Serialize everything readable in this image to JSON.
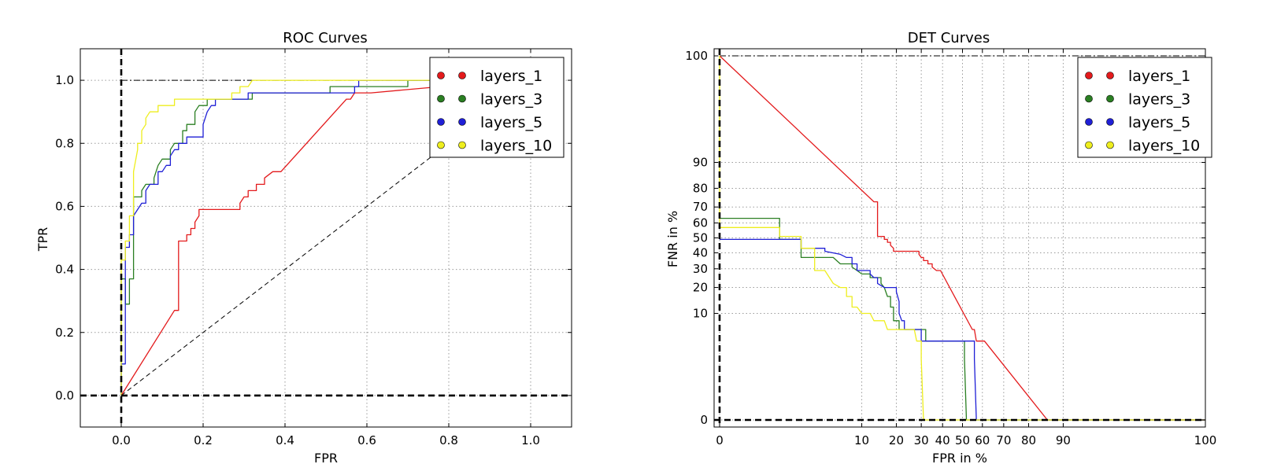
{
  "chart_data": [
    {
      "type": "line",
      "title": "ROC Curves",
      "xlabel": "FPR",
      "ylabel": "TPR",
      "xlim": [
        -0.1,
        1.1
      ],
      "ylim": [
        -0.1,
        1.1
      ],
      "xticks": [
        0.0,
        0.2,
        0.4,
        0.6,
        0.8,
        1.0
      ],
      "xtick_labels": [
        "0.0",
        "0.2",
        "0.4",
        "0.6",
        "0.8",
        "1.0"
      ],
      "yticks": [
        0.0,
        0.2,
        0.4,
        0.6,
        0.8,
        1.0
      ],
      "ytick_labels": [
        "0.0",
        "0.2",
        "0.4",
        "0.6",
        "0.8",
        "1.0"
      ],
      "grid": true,
      "legend": "top-right",
      "series": [
        {
          "name": "layers_1",
          "color": "#e31a1c",
          "points": [
            [
              0,
              0
            ],
            [
              0.13,
              0.27
            ],
            [
              0.14,
              0.27
            ],
            [
              0.14,
              0.49
            ],
            [
              0.16,
              0.49
            ],
            [
              0.16,
              0.51
            ],
            [
              0.17,
              0.51
            ],
            [
              0.17,
              0.53
            ],
            [
              0.18,
              0.53
            ],
            [
              0.18,
              0.55
            ],
            [
              0.19,
              0.57
            ],
            [
              0.19,
              0.59
            ],
            [
              0.29,
              0.59
            ],
            [
              0.29,
              0.61
            ],
            [
              0.3,
              0.63
            ],
            [
              0.31,
              0.63
            ],
            [
              0.31,
              0.65
            ],
            [
              0.33,
              0.65
            ],
            [
              0.33,
              0.67
            ],
            [
              0.35,
              0.67
            ],
            [
              0.35,
              0.69
            ],
            [
              0.37,
              0.71
            ],
            [
              0.39,
              0.71
            ],
            [
              0.55,
              0.94
            ],
            [
              0.56,
              0.94
            ],
            [
              0.57,
              0.96
            ],
            [
              0.61,
              0.96
            ],
            [
              0.78,
              0.98
            ],
            [
              0.79,
              0.98
            ],
            [
              0.8,
              1.0
            ],
            [
              1.0,
              1.0
            ]
          ]
        },
        {
          "name": "layers_3",
          "color": "#2a7f22",
          "points": [
            [
              0,
              0
            ],
            [
              0,
              0.37
            ],
            [
              0.01,
              0.37
            ],
            [
              0.01,
              0.29
            ],
            [
              0.02,
              0.29
            ],
            [
              0.02,
              0.37
            ],
            [
              0.03,
              0.37
            ],
            [
              0.03,
              0.63
            ],
            [
              0.05,
              0.63
            ],
            [
              0.05,
              0.65
            ],
            [
              0.06,
              0.67
            ],
            [
              0.08,
              0.67
            ],
            [
              0.08,
              0.69
            ],
            [
              0.09,
              0.73
            ],
            [
              0.1,
              0.75
            ],
            [
              0.12,
              0.75
            ],
            [
              0.12,
              0.78
            ],
            [
              0.13,
              0.8
            ],
            [
              0.15,
              0.8
            ],
            [
              0.15,
              0.84
            ],
            [
              0.16,
              0.84
            ],
            [
              0.16,
              0.86
            ],
            [
              0.18,
              0.86
            ],
            [
              0.18,
              0.9
            ],
            [
              0.19,
              0.92
            ],
            [
              0.21,
              0.92
            ],
            [
              0.21,
              0.94
            ],
            [
              0.32,
              0.94
            ],
            [
              0.32,
              0.96
            ],
            [
              0.51,
              0.96
            ],
            [
              0.51,
              0.98
            ],
            [
              0.7,
              0.98
            ],
            [
              0.7,
              1.0
            ],
            [
              1.0,
              1.0
            ]
          ]
        },
        {
          "name": "layers_5",
          "color": "#1f1fd6",
          "points": [
            [
              0,
              0
            ],
            [
              0,
              0.1
            ],
            [
              0.01,
              0.1
            ],
            [
              0.01,
              0.47
            ],
            [
              0.02,
              0.47
            ],
            [
              0.02,
              0.51
            ],
            [
              0.03,
              0.51
            ],
            [
              0.03,
              0.57
            ],
            [
              0.04,
              0.59
            ],
            [
              0.05,
              0.61
            ],
            [
              0.06,
              0.61
            ],
            [
              0.06,
              0.65
            ],
            [
              0.07,
              0.67
            ],
            [
              0.09,
              0.67
            ],
            [
              0.09,
              0.71
            ],
            [
              0.1,
              0.71
            ],
            [
              0.11,
              0.73
            ],
            [
              0.12,
              0.73
            ],
            [
              0.12,
              0.76
            ],
            [
              0.13,
              0.78
            ],
            [
              0.14,
              0.78
            ],
            [
              0.14,
              0.8
            ],
            [
              0.16,
              0.8
            ],
            [
              0.16,
              0.82
            ],
            [
              0.2,
              0.82
            ],
            [
              0.2,
              0.86
            ],
            [
              0.21,
              0.9
            ],
            [
              0.22,
              0.92
            ],
            [
              0.23,
              0.92
            ],
            [
              0.23,
              0.94
            ],
            [
              0.31,
              0.94
            ],
            [
              0.31,
              0.96
            ],
            [
              0.57,
              0.96
            ],
            [
              0.57,
              0.98
            ],
            [
              0.58,
              0.98
            ],
            [
              0.58,
              1.0
            ],
            [
              1.0,
              1.0
            ]
          ]
        },
        {
          "name": "layers_10",
          "color": "#eeee1e",
          "points": [
            [
              0,
              0
            ],
            [
              0,
              0.43
            ],
            [
              0.01,
              0.43
            ],
            [
              0.01,
              0.49
            ],
            [
              0.02,
              0.49
            ],
            [
              0.02,
              0.57
            ],
            [
              0.03,
              0.57
            ],
            [
              0.03,
              0.71
            ],
            [
              0.04,
              0.78
            ],
            [
              0.04,
              0.8
            ],
            [
              0.05,
              0.8
            ],
            [
              0.05,
              0.84
            ],
            [
              0.06,
              0.86
            ],
            [
              0.06,
              0.88
            ],
            [
              0.07,
              0.9
            ],
            [
              0.09,
              0.9
            ],
            [
              0.09,
              0.92
            ],
            [
              0.1,
              0.92
            ],
            [
              0.13,
              0.92
            ],
            [
              0.13,
              0.94
            ],
            [
              0.27,
              0.94
            ],
            [
              0.27,
              0.96
            ],
            [
              0.29,
              0.96
            ],
            [
              0.29,
              0.98
            ],
            [
              0.31,
              0.98
            ],
            [
              0.32,
              1.0
            ],
            [
              1.0,
              1.0
            ]
          ]
        }
      ],
      "reference_lines": {
        "chance_diagonal": [
          [
            0,
            0
          ],
          [
            1,
            1
          ]
        ],
        "perfect_corner": [
          [
            0,
            1
          ],
          [
            1,
            1
          ]
        ]
      },
      "legend_entries": [
        "layers_1",
        "layers_3",
        "layers_5",
        "layers_10"
      ]
    },
    {
      "type": "line",
      "title": "DET Curves",
      "xlabel": "FPR in %",
      "ylabel": "FNR in %",
      "scale": "normal-deviate (probit)",
      "xticks": [
        0,
        10,
        20,
        30,
        40,
        50,
        60,
        70,
        80,
        90,
        100
      ],
      "xtick_labels": [
        "0",
        "10",
        "20",
        "30",
        "40",
        "50",
        "60",
        "70",
        "80",
        "90",
        "100"
      ],
      "yticks": [
        0,
        10,
        20,
        30,
        40,
        50,
        60,
        70,
        80,
        90,
        100
      ],
      "ytick_labels": [
        "0",
        "10",
        "20",
        "30",
        "40",
        "50",
        "60",
        "70",
        "80",
        "90",
        "100"
      ],
      "grid": true,
      "legend": "top-right",
      "series": [
        {
          "name": "layers_1",
          "color": "#e31a1c",
          "points": [
            [
              0,
              100
            ],
            [
              13,
              73
            ],
            [
              14,
              73
            ],
            [
              14,
              51
            ],
            [
              16,
              51
            ],
            [
              16,
              49
            ],
            [
              17,
              49
            ],
            [
              17,
              47
            ],
            [
              18,
              47
            ],
            [
              18,
              45
            ],
            [
              19,
              43
            ],
            [
              19,
              41
            ],
            [
              29,
              41
            ],
            [
              29,
              39
            ],
            [
              30,
              37
            ],
            [
              31,
              37
            ],
            [
              31,
              35
            ],
            [
              33,
              35
            ],
            [
              33,
              33
            ],
            [
              35,
              33
            ],
            [
              35,
              31
            ],
            [
              37,
              29
            ],
            [
              39,
              29
            ],
            [
              55,
              6
            ],
            [
              56,
              6
            ],
            [
              57,
              4
            ],
            [
              61,
              4
            ],
            [
              86,
              0
            ],
            [
              100,
              0
            ]
          ]
        },
        {
          "name": "layers_3",
          "color": "#2a7f22",
          "points": [
            [
              0,
              63
            ],
            [
              1,
              63
            ],
            [
              1,
              49
            ],
            [
              2,
              49
            ],
            [
              2,
              37
            ],
            [
              5,
              37
            ],
            [
              6,
              33
            ],
            [
              8,
              33
            ],
            [
              8,
              31
            ],
            [
              9,
              29
            ],
            [
              10,
              27
            ],
            [
              12,
              27
            ],
            [
              12,
              25
            ],
            [
              13,
              25
            ],
            [
              15,
              25
            ],
            [
              15,
              22
            ],
            [
              16,
              20
            ],
            [
              17,
              16
            ],
            [
              18,
              16
            ],
            [
              18,
              12
            ],
            [
              19,
              12
            ],
            [
              19,
              8
            ],
            [
              21,
              8
            ],
            [
              21,
              6
            ],
            [
              32,
              6
            ],
            [
              32,
              4
            ],
            [
              51,
              4
            ],
            [
              51,
              2
            ],
            [
              52,
              0
            ],
            [
              100,
              0
            ]
          ]
        },
        {
          "name": "layers_5",
          "color": "#1f1fd6",
          "points": [
            [
              0,
              49
            ],
            [
              1,
              49
            ],
            [
              2,
              49
            ],
            [
              2,
              43
            ],
            [
              3,
              43
            ],
            [
              4,
              43
            ],
            [
              4,
              41
            ],
            [
              6,
              39
            ],
            [
              7,
              37
            ],
            [
              8,
              37
            ],
            [
              8,
              33
            ],
            [
              9,
              33
            ],
            [
              9,
              29
            ],
            [
              10,
              29
            ],
            [
              12,
              29
            ],
            [
              12,
              27
            ],
            [
              13,
              25
            ],
            [
              14,
              25
            ],
            [
              14,
              22
            ],
            [
              16,
              20
            ],
            [
              20,
              20
            ],
            [
              20,
              18
            ],
            [
              21,
              14
            ],
            [
              21,
              10
            ],
            [
              22,
              8
            ],
            [
              23,
              8
            ],
            [
              23,
              6
            ],
            [
              30,
              6
            ],
            [
              30,
              4
            ],
            [
              56,
              4
            ],
            [
              56,
              2
            ],
            [
              57,
              0
            ],
            [
              100,
              0
            ]
          ]
        },
        {
          "name": "layers_10",
          "color": "#eeee1e",
          "points": [
            [
              0,
              100
            ],
            [
              0,
              57
            ],
            [
              1,
              57
            ],
            [
              1,
              51
            ],
            [
              2,
              51
            ],
            [
              2,
              43
            ],
            [
              3,
              43
            ],
            [
              3,
              29
            ],
            [
              4,
              29
            ],
            [
              5,
              22
            ],
            [
              6,
              20
            ],
            [
              7,
              20
            ],
            [
              7,
              16
            ],
            [
              8,
              16
            ],
            [
              8,
              12
            ],
            [
              9,
              12
            ],
            [
              10,
              10
            ],
            [
              12,
              10
            ],
            [
              13,
              8
            ],
            [
              16,
              8
            ],
            [
              17,
              6
            ],
            [
              27,
              6
            ],
            [
              28,
              4
            ],
            [
              30,
              4
            ],
            [
              30,
              2
            ],
            [
              31,
              0
            ],
            [
              100,
              0
            ]
          ]
        }
      ],
      "legend_entries": [
        "layers_1",
        "layers_3",
        "layers_5",
        "layers_10"
      ]
    }
  ]
}
